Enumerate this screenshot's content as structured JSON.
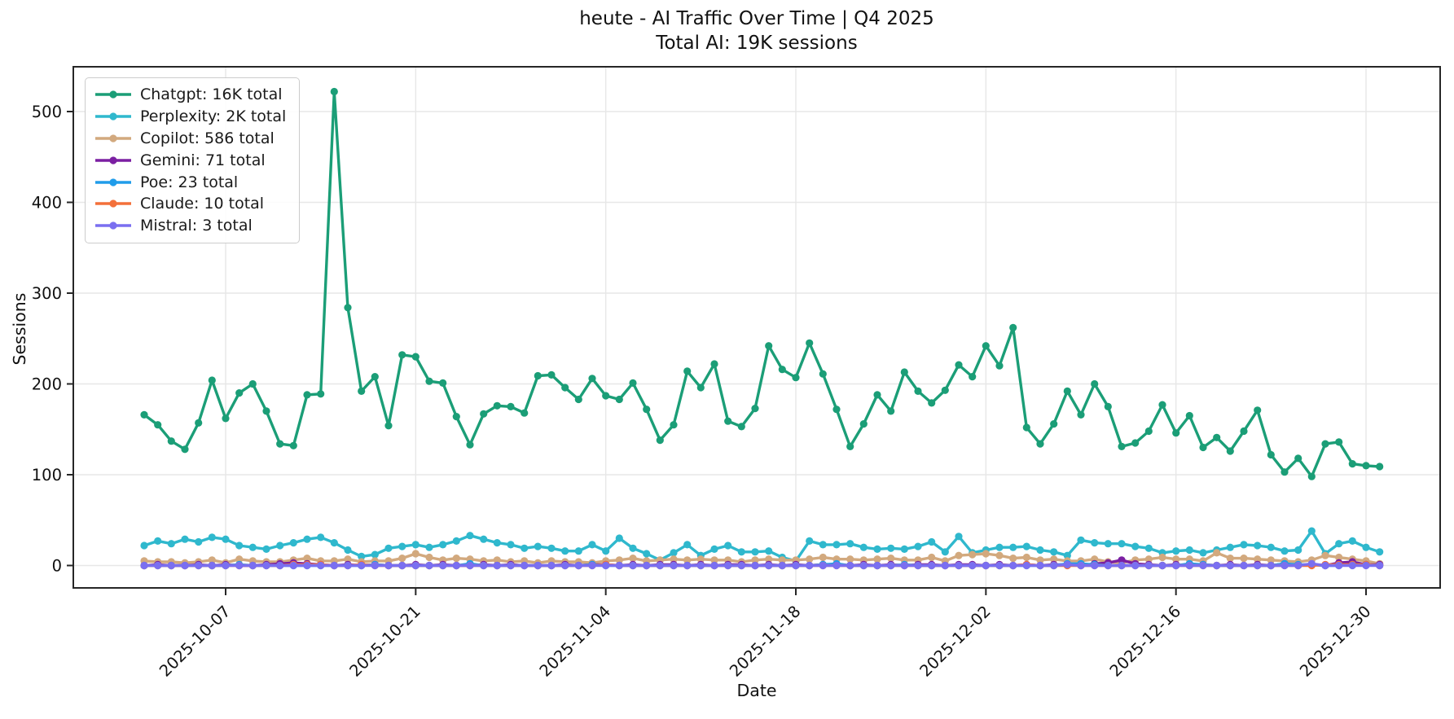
{
  "title": {
    "line1": "heute - AI Traffic Over Time | Q4 2025",
    "line2": "Total AI: 19K sessions"
  },
  "axes": {
    "x_label": "Date",
    "y_label": "Sessions",
    "y_ticks": [
      "0",
      "100",
      "200",
      "300",
      "400",
      "500"
    ],
    "x_ticks": [
      {
        "label": "2025-10-07",
        "day_index": 6
      },
      {
        "label": "2025-10-21",
        "day_index": 20
      },
      {
        "label": "2025-11-04",
        "day_index": 34
      },
      {
        "label": "2025-11-18",
        "day_index": 48
      },
      {
        "label": "2025-12-02",
        "day_index": 62
      },
      {
        "label": "2025-12-16",
        "day_index": 76
      },
      {
        "label": "2025-12-30",
        "day_index": 90
      }
    ]
  },
  "colors": {
    "grid": "#e7e7e7",
    "spine": "#262626",
    "text": "#111111"
  },
  "chart_data": {
    "type": "line",
    "title": "heute - AI Traffic Over Time | Q4 2025\nTotal AI: 19K sessions",
    "xlabel": "Date",
    "ylabel": "Sessions",
    "x_start_date": "2025-10-01",
    "x_end_date": "2025-12-31",
    "x_days": 92,
    "ylim": [
      -25,
      549
    ],
    "grid": true,
    "legend_position": "upper left",
    "series": [
      {
        "name": "Chatgpt",
        "legend_label": "Chatgpt: 16K total",
        "total": "16K",
        "color": "#1b9e77",
        "values": [
          166,
          155,
          137,
          128,
          157,
          204,
          162,
          190,
          200,
          170,
          134,
          132,
          188,
          189,
          522,
          284,
          192,
          208,
          154,
          232,
          230,
          203,
          201,
          164,
          133,
          167,
          176,
          175,
          168,
          209,
          210,
          196,
          183,
          206,
          187,
          183,
          201,
          172,
          138,
          155,
          214,
          196,
          222,
          159,
          153,
          173,
          242,
          216,
          207,
          245,
          211,
          172,
          131,
          156,
          188,
          170,
          213,
          192,
          179,
          193,
          221,
          208,
          242,
          220,
          262,
          152,
          134,
          156,
          192,
          166,
          200,
          175,
          131,
          135,
          148,
          177,
          146,
          165,
          130,
          141,
          126,
          148,
          171,
          122,
          103,
          118,
          98,
          134,
          136,
          112,
          110,
          109
        ]
      },
      {
        "name": "Perplexity",
        "legend_label": "Perplexity: 2K total",
        "total": "2K",
        "color": "#2fb8cd",
        "values": [
          22,
          27,
          24,
          29,
          26,
          31,
          29,
          22,
          20,
          18,
          22,
          25,
          29,
          31,
          25,
          17,
          10,
          12,
          19,
          21,
          23,
          20,
          23,
          27,
          33,
          29,
          25,
          23,
          19,
          21,
          19,
          16,
          16,
          23,
          16,
          30,
          19,
          13,
          6,
          14,
          23,
          11,
          18,
          22,
          15,
          15,
          16,
          9,
          5,
          27,
          23,
          23,
          24,
          20,
          18,
          19,
          18,
          21,
          26,
          15,
          32,
          14,
          17,
          20,
          20,
          21,
          17,
          15,
          11,
          28,
          25,
          24,
          24,
          21,
          19,
          14,
          16,
          17,
          14,
          17,
          20,
          23,
          22,
          20,
          16,
          17,
          38,
          13,
          24,
          27,
          20,
          15
        ]
      },
      {
        "name": "Copilot",
        "legend_label": "Copilot: 586 total",
        "total": "586",
        "color": "#d2a97e",
        "values": [
          5,
          4,
          4,
          3,
          4,
          6,
          3,
          7,
          5,
          4,
          4,
          6,
          8,
          5,
          5,
          7,
          4,
          5,
          5,
          8,
          13,
          9,
          6,
          8,
          7,
          5,
          6,
          4,
          5,
          3,
          5,
          4,
          4,
          3,
          5,
          6,
          8,
          5,
          6,
          7,
          6,
          7,
          6,
          6,
          4,
          6,
          7,
          6,
          6,
          7,
          9,
          7,
          7,
          6,
          7,
          8,
          6,
          6,
          9,
          5,
          11,
          12,
          13,
          11,
          8,
          9,
          6,
          7,
          5,
          5,
          7,
          4,
          3,
          6,
          7,
          9,
          7,
          7,
          5,
          14,
          8,
          8,
          7,
          6,
          5,
          4,
          6,
          11,
          9,
          7,
          5,
          2
        ]
      },
      {
        "name": "Gemini",
        "legend_label": "Gemini: 71 total",
        "total": "71",
        "color": "#7b1fa2",
        "values": [
          0,
          1,
          0,
          0,
          1,
          0,
          1,
          0,
          0,
          1,
          2,
          3,
          2,
          1,
          0,
          1,
          0,
          1,
          0,
          0,
          1,
          0,
          1,
          0,
          0,
          1,
          0,
          1,
          0,
          0,
          0,
          1,
          0,
          1,
          1,
          0,
          1,
          0,
          1,
          1,
          0,
          1,
          0,
          1,
          1,
          0,
          1,
          0,
          1,
          0,
          1,
          1,
          0,
          1,
          0,
          1,
          0,
          1,
          1,
          0,
          1,
          1,
          0,
          1,
          0,
          1,
          0,
          1,
          1,
          0,
          2,
          3,
          6,
          2,
          1,
          0,
          1,
          0,
          1,
          0,
          1,
          0,
          1,
          0,
          2,
          0,
          1,
          0,
          3,
          4,
          1,
          1
        ]
      },
      {
        "name": "Poe",
        "legend_label": "Poe: 23 total",
        "total": "23",
        "color": "#209cea",
        "values": [
          0,
          0,
          0,
          0,
          0,
          0,
          0,
          1,
          0,
          0,
          0,
          0,
          0,
          0,
          0,
          0,
          0,
          1,
          0,
          0,
          0,
          0,
          0,
          0,
          2,
          0,
          0,
          0,
          0,
          0,
          0,
          0,
          0,
          1,
          0,
          0,
          0,
          0,
          0,
          0,
          0,
          0,
          0,
          0,
          0,
          0,
          0,
          0,
          0,
          0,
          1,
          2,
          0,
          0,
          0,
          0,
          1,
          0,
          0,
          0,
          0,
          0,
          0,
          0,
          0,
          0,
          0,
          0,
          2,
          2,
          1,
          0,
          0,
          0,
          0,
          0,
          0,
          2,
          1,
          0,
          0,
          0,
          0,
          0,
          2,
          1,
          1,
          0,
          0,
          1,
          1,
          0
        ]
      },
      {
        "name": "Claude",
        "legend_label": "Claude: 10 total",
        "total": "10",
        "color": "#f3703a",
        "values": [
          0,
          0,
          0,
          0,
          0,
          0,
          0,
          0,
          0,
          0,
          0,
          1,
          1,
          1,
          0,
          0,
          1,
          0,
          0,
          0,
          0,
          0,
          0,
          0,
          0,
          0,
          0,
          0,
          0,
          0,
          0,
          0,
          0,
          0,
          1,
          0,
          0,
          0,
          0,
          0,
          0,
          0,
          0,
          0,
          0,
          0,
          0,
          0,
          0,
          0,
          0,
          0,
          0,
          0,
          0,
          0,
          0,
          0,
          0,
          0,
          0,
          0,
          0,
          0,
          0,
          1,
          0,
          0,
          0,
          0,
          0,
          0,
          0,
          0,
          0,
          0,
          0,
          0,
          0,
          0,
          0,
          0,
          0,
          0,
          0,
          0,
          0,
          1,
          1,
          1,
          1,
          0
        ]
      },
      {
        "name": "Mistral",
        "legend_label": "Mistral: 3 total",
        "total": "3",
        "color": "#7a6ff0",
        "values": [
          0,
          0,
          0,
          0,
          0,
          0,
          0,
          0,
          0,
          0,
          0,
          0,
          0,
          0,
          0,
          0,
          0,
          0,
          0,
          0,
          0,
          0,
          0,
          0,
          0,
          0,
          0,
          0,
          0,
          0,
          0,
          0,
          0,
          0,
          0,
          0,
          0,
          0,
          0,
          0,
          0,
          0,
          0,
          0,
          0,
          0,
          0,
          0,
          0,
          0,
          0,
          0,
          0,
          0,
          0,
          0,
          0,
          0,
          0,
          0,
          0,
          0,
          0,
          0,
          0,
          0,
          0,
          0,
          1,
          0,
          0,
          0,
          0,
          0,
          0,
          0,
          0,
          0,
          0,
          0,
          0,
          0,
          0,
          0,
          0,
          0,
          2,
          0,
          0,
          0,
          0,
          0
        ]
      }
    ]
  }
}
